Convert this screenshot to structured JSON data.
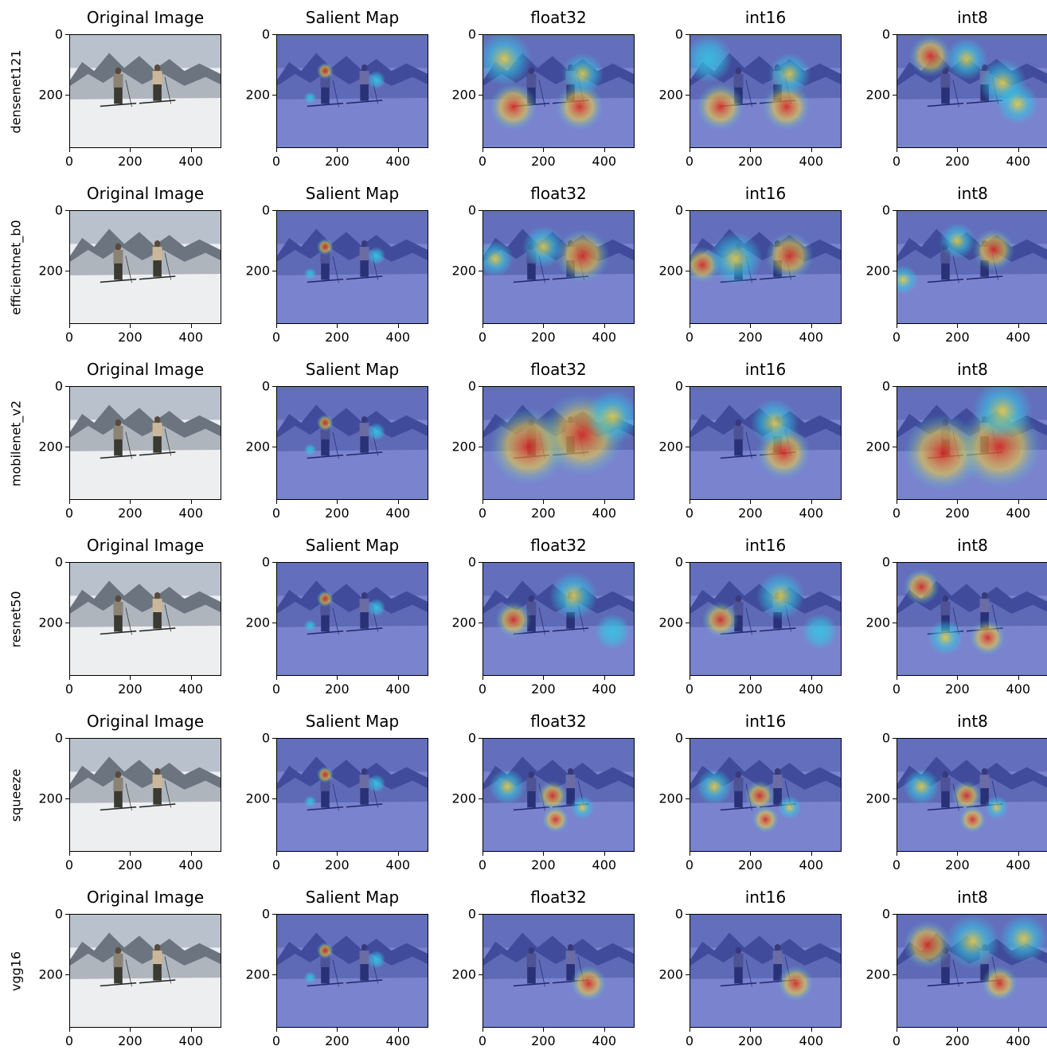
{
  "rows": [
    {
      "label": "densenet121"
    },
    {
      "label": "efficientnet_b0"
    },
    {
      "label": "mobilenet_v2"
    },
    {
      "label": "resnet50"
    },
    {
      "label": "squeeze"
    },
    {
      "label": "vgg16"
    }
  ],
  "columns": [
    {
      "title": "Original Image",
      "kind": "photo"
    },
    {
      "title": "Salient Map",
      "kind": "salient"
    },
    {
      "title": "float32",
      "kind": "heat"
    },
    {
      "title": "int16",
      "kind": "heat"
    },
    {
      "title": "int8",
      "kind": "heat"
    }
  ],
  "x_ticks": [
    "0",
    "200",
    "400"
  ],
  "y_ticks": [
    "0",
    "200"
  ],
  "image_extent": {
    "width": 500,
    "height": 375
  },
  "colors": {
    "sky": "#b9c2cc",
    "snow": "#eceef0",
    "mountain": "#6c7480",
    "overlay_blue": "#1e2bb0",
    "hot": "#e2231a",
    "warm": "#f4d23a",
    "cool": "#32c8e6"
  }
}
